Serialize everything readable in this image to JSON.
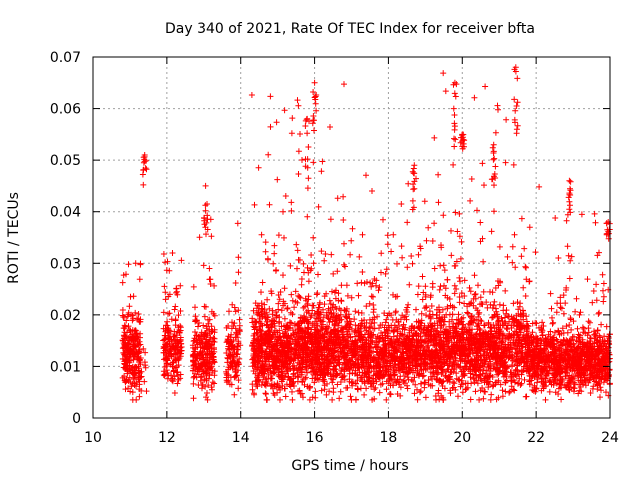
{
  "chart_data": {
    "type": "scatter",
    "title": "Day 340 of 2021, Rate Of TEC Index for receiver bfta",
    "xlabel": "GPS time / hours",
    "ylabel": "ROTI / TECUs",
    "xlim": [
      10,
      24
    ],
    "ylim": [
      0,
      0.07
    ],
    "xticks": [
      "10",
      "12",
      "14",
      "16",
      "18",
      "20",
      "22",
      "24"
    ],
    "yticks": [
      "0",
      "0.01",
      "0.02",
      "0.03",
      "0.04",
      "0.05",
      "0.06",
      "0.07"
    ],
    "grid": true,
    "marker": "+",
    "color": "#ff0000",
    "clusters": [
      {
        "x_start": 10.8,
        "x_end": 11.3,
        "y_center": 0.012,
        "y_spread": 0.006,
        "y_max": 0.03,
        "count": 260
      },
      {
        "x_start": 11.3,
        "x_end": 11.45,
        "y_center": 0.008,
        "y_spread": 0.004,
        "y_max": 0.05,
        "count": 10
      },
      {
        "x_start": 11.9,
        "x_end": 12.4,
        "y_center": 0.013,
        "y_spread": 0.006,
        "y_max": 0.032,
        "count": 200
      },
      {
        "x_start": 12.7,
        "x_end": 13.3,
        "y_center": 0.012,
        "y_spread": 0.006,
        "y_max": 0.045,
        "count": 260
      },
      {
        "x_start": 13.6,
        "x_end": 14.0,
        "y_center": 0.012,
        "y_spread": 0.006,
        "y_max": 0.04,
        "count": 120
      },
      {
        "x_start": 14.3,
        "x_end": 17.0,
        "y_center": 0.013,
        "y_spread": 0.007,
        "y_max": 0.065,
        "count": 1500
      },
      {
        "x_start": 17.0,
        "x_end": 19.0,
        "y_center": 0.012,
        "y_spread": 0.006,
        "y_max": 0.049,
        "count": 900
      },
      {
        "x_start": 19.0,
        "x_end": 21.8,
        "y_center": 0.013,
        "y_spread": 0.007,
        "y_max": 0.068,
        "count": 1400
      },
      {
        "x_start": 21.8,
        "x_end": 23.3,
        "y_center": 0.011,
        "y_spread": 0.005,
        "y_max": 0.046,
        "count": 700
      },
      {
        "x_start": 23.3,
        "x_end": 24.0,
        "y_center": 0.011,
        "y_spread": 0.005,
        "y_max": 0.04,
        "count": 350
      }
    ],
    "spikes": [
      {
        "x": 11.4,
        "y_min": 0.045,
        "y_max": 0.051
      },
      {
        "x": 13.05,
        "y_min": 0.035,
        "y_max": 0.045
      },
      {
        "x": 15.8,
        "y_min": 0.044,
        "y_max": 0.058
      },
      {
        "x": 16.0,
        "y_min": 0.055,
        "y_max": 0.065
      },
      {
        "x": 18.7,
        "y_min": 0.04,
        "y_max": 0.049
      },
      {
        "x": 19.8,
        "y_min": 0.045,
        "y_max": 0.065
      },
      {
        "x": 20.0,
        "y_min": 0.052,
        "y_max": 0.055
      },
      {
        "x": 20.85,
        "y_min": 0.045,
        "y_max": 0.053
      },
      {
        "x": 21.45,
        "y_min": 0.055,
        "y_max": 0.068
      },
      {
        "x": 22.9,
        "y_min": 0.039,
        "y_max": 0.046
      },
      {
        "x": 23.95,
        "y_min": 0.034,
        "y_max": 0.038
      }
    ]
  }
}
